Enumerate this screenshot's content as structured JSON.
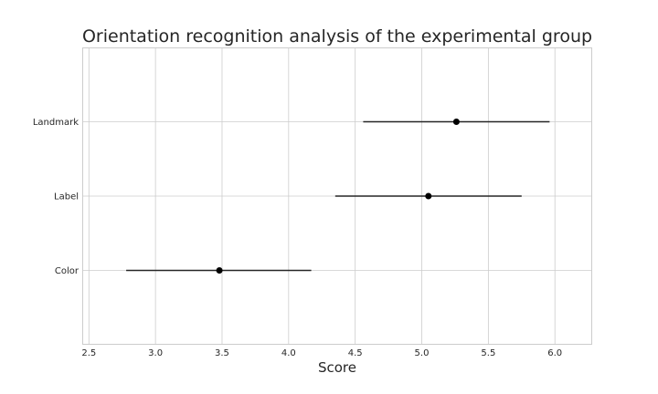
{
  "chart_data": {
    "type": "errorbar",
    "title": "Orientation recognition analysis of the experimental group",
    "xlabel": "Score",
    "ylabel": "",
    "xlim": [
      2.45,
      6.28
    ],
    "xticks": [
      "2.5",
      "3.0",
      "3.5",
      "4.0",
      "4.5",
      "5.0",
      "5.5",
      "6.0"
    ],
    "categories": [
      "Color",
      "Label",
      "Landmark"
    ],
    "points": [
      {
        "category": "Color",
        "mean": 3.48,
        "low": 2.78,
        "high": 4.17
      },
      {
        "category": "Label",
        "mean": 5.05,
        "low": 4.35,
        "high": 5.75
      },
      {
        "category": "Landmark",
        "mean": 5.26,
        "low": 4.56,
        "high": 5.96
      }
    ],
    "grid": true,
    "colors": {
      "point": "#000000",
      "errorbar": "#262626",
      "grid": "#cccccc"
    }
  }
}
